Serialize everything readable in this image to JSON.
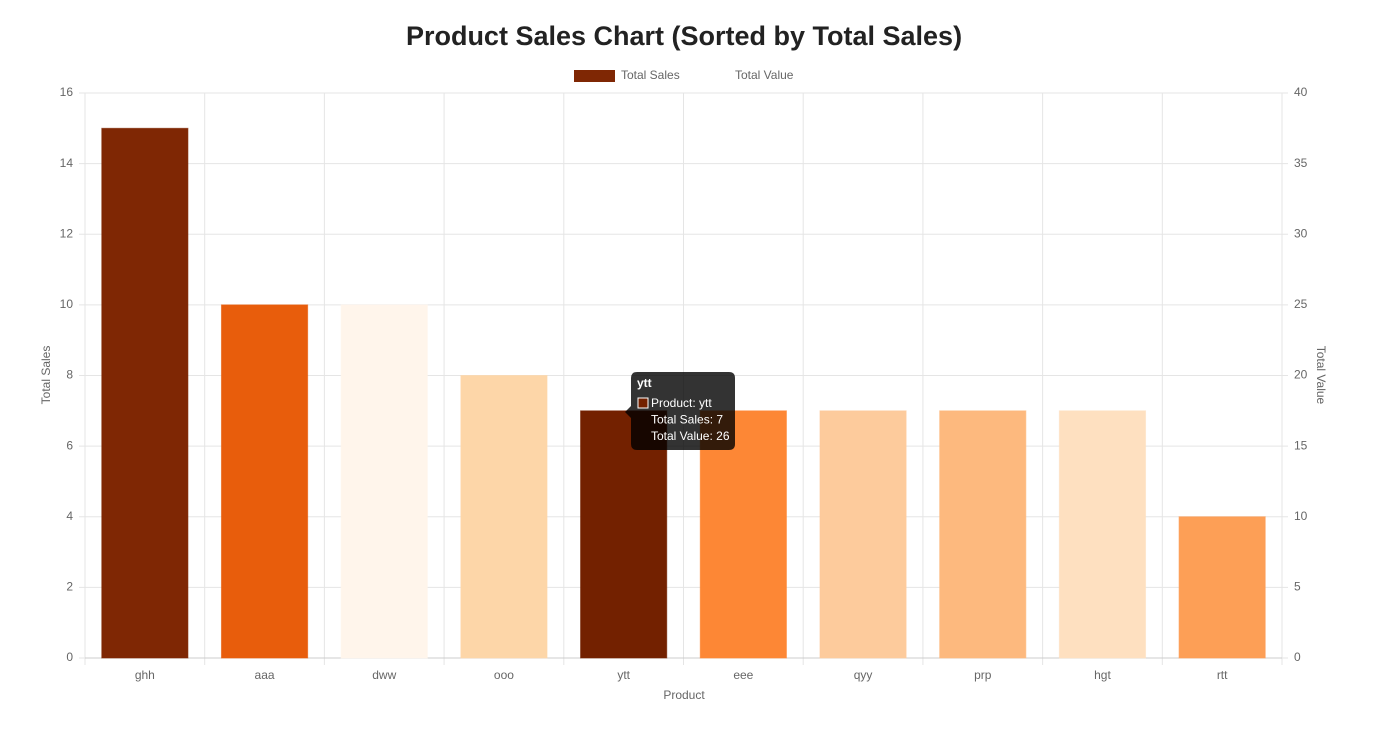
{
  "chart_data": {
    "type": "bar",
    "title": "Product Sales Chart (Sorted by Total Sales)",
    "x_label": "Product",
    "y_label": "Total Sales",
    "y2_label": "Total Value",
    "categories": [
      "ghh",
      "aaa",
      "dww",
      "ooo",
      "ytt",
      "eee",
      "qyy",
      "prp",
      "hgt",
      "rtt"
    ],
    "series": [
      {
        "name": "Total Sales",
        "color": "#7f2704",
        "values": [
          15,
          10,
          10,
          8,
          7,
          7,
          7,
          7,
          7,
          4
        ],
        "colors": [
          "#7f2704",
          "#e85d0c",
          "#fff5eb",
          "#fdd6a8",
          "#732100",
          "#fd8735",
          "#fdcb9c",
          "#fdb97e",
          "#fee0c0",
          "#fd9f56"
        ]
      },
      {
        "name": "Total Value",
        "axis": "y2"
      }
    ],
    "ylim": [
      0,
      16
    ],
    "yticks": [
      0,
      2,
      4,
      6,
      8,
      10,
      12,
      14,
      16
    ],
    "y2lim": [
      0,
      40
    ],
    "y2ticks": [
      0,
      5,
      10,
      15,
      20,
      25,
      30,
      35,
      40
    ],
    "grid": true,
    "legend": "top",
    "tooltip": {
      "title": "ytt",
      "lines": [
        "Product: ytt",
        "Total Sales: 7",
        "Total Value: 26"
      ]
    }
  }
}
